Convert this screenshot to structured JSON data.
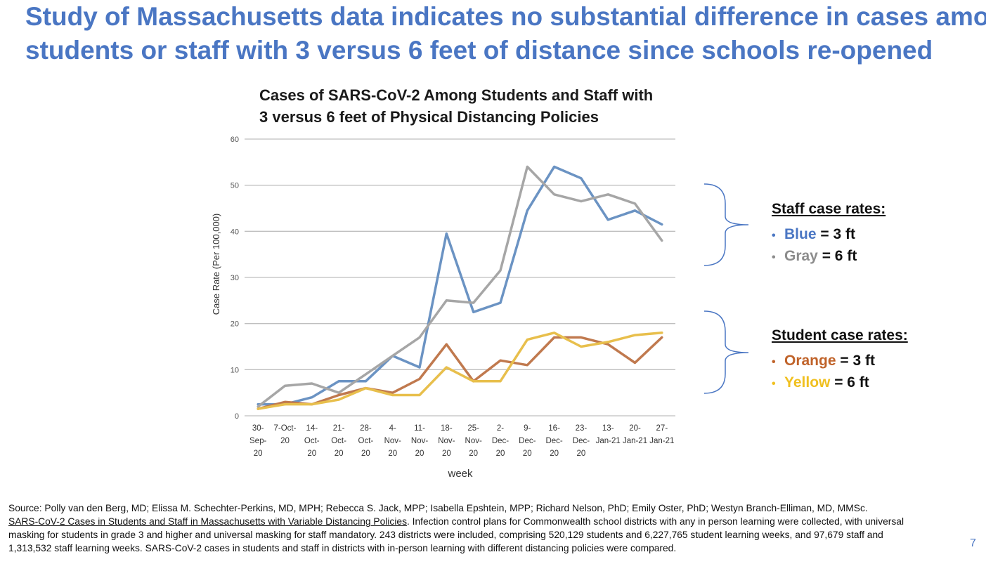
{
  "slide": {
    "title_line1": "Study of Massachusetts data indicates no substantial difference in cases among",
    "title_line2": "students or staff with 3 versus 6 feet of distance since schools re-opened",
    "page_number": "7"
  },
  "chart_data": {
    "type": "line",
    "title_line1": "Cases of SARS-CoV-2 Among Students and Staff with",
    "title_line2": "3 versus 6 feet of Physical Distancing Policies",
    "xlabel": "week",
    "ylabel": "Case Rate (Per 100,000)",
    "ylim": [
      0,
      60
    ],
    "yticks": [
      0,
      10,
      20,
      30,
      40,
      50,
      60
    ],
    "categories": [
      [
        "30-",
        "Sep-",
        "20"
      ],
      [
        "7-Oct-",
        "20"
      ],
      [
        "14-",
        "Oct-",
        "20"
      ],
      [
        "21-",
        "Oct-",
        "20"
      ],
      [
        "28-",
        "Oct-",
        "20"
      ],
      [
        "4-",
        "Nov-",
        "20"
      ],
      [
        "11-",
        "Nov-",
        "20"
      ],
      [
        "18-",
        "Nov-",
        "20"
      ],
      [
        "25-",
        "Nov-",
        "20"
      ],
      [
        "2-",
        "Dec-",
        "20"
      ],
      [
        "9-",
        "Dec-",
        "20"
      ],
      [
        "16-",
        "Dec-",
        "20"
      ],
      [
        "23-",
        "Dec-",
        "20"
      ],
      [
        "13-",
        "Jan-21"
      ],
      [
        "20-",
        "Jan-21"
      ],
      [
        "27-",
        "Jan-21"
      ]
    ],
    "grid": true,
    "series": [
      {
        "name": "Staff 3 ft",
        "color": "#6b93c3",
        "values": [
          2.5,
          2.5,
          4,
          7.5,
          7.5,
          13,
          10.5,
          39.5,
          22.5,
          24.5,
          44.5,
          54,
          51.5,
          42.5,
          44.5,
          41.5
        ]
      },
      {
        "name": "Staff 6 ft",
        "color": "#a6a6a6",
        "values": [
          2,
          6.5,
          7,
          5,
          9,
          13,
          17,
          25,
          24.5,
          31.5,
          54,
          48,
          46.5,
          48,
          46,
          38
        ]
      },
      {
        "name": "Students 3 ft",
        "color": "#c0794e",
        "values": [
          1.5,
          3,
          2.5,
          4.5,
          6,
          5,
          8,
          15.5,
          7.5,
          12,
          11,
          17,
          17,
          15.5,
          11.5,
          17
        ]
      },
      {
        "name": "Students 6 ft",
        "color": "#e8bf4c",
        "values": [
          1.5,
          2.5,
          2.5,
          3.5,
          6,
          4.5,
          4.5,
          10.5,
          7.5,
          7.5,
          16.5,
          18,
          15,
          16,
          17.5,
          18
        ]
      }
    ]
  },
  "legend": {
    "staff": {
      "title": "Staff case rates:",
      "items": [
        {
          "name": "Blue",
          "rest": " = 3 ft",
          "color": "#4a76c3",
          "bullet_color": "#4a76c3"
        },
        {
          "name": "Gray",
          "rest": " = 6 ft",
          "color": "#8c8c8c",
          "bullet_color": "#8c8c8c"
        }
      ]
    },
    "students": {
      "title": "Student case rates:",
      "items": [
        {
          "name": "Orange",
          "rest": " = 3 ft",
          "color": "#c0632a",
          "bullet_color": "#c0632a"
        },
        {
          "name": "Yellow",
          "rest": " = 6 ft",
          "color": "#f0c020",
          "bullet_color": "#f0c020"
        }
      ]
    }
  },
  "footer": {
    "line1": "Source: Polly van den Berg, MD; Elissa M. Schechter-Perkins, MD, MPH; Rebecca S. Jack, MPP; Isabella Epshtein, MPP; Richard Nelson, PhD; Emily Oster, PhD; Westyn Branch-Elliman, MD, MMSc.",
    "link_text": "SARS-CoV-2 Cases in Students and Staff in Massachusetts with Variable Distancing Policies",
    "line2_rest": ". Infection control plans for Commonwealth school districts with any in person learning were collected, with universal",
    "line3": "masking for students in grade 3 and higher and universal masking for staff mandatory. 243 districts were included, comprising 520,129 students and 6,227,765 student learning weeks, and 97,679 staff and",
    "line4": "1,313,532 staff learning weeks. SARS-CoV-2 cases in students and staff in districts with in-person learning with different distancing policies were compared."
  }
}
